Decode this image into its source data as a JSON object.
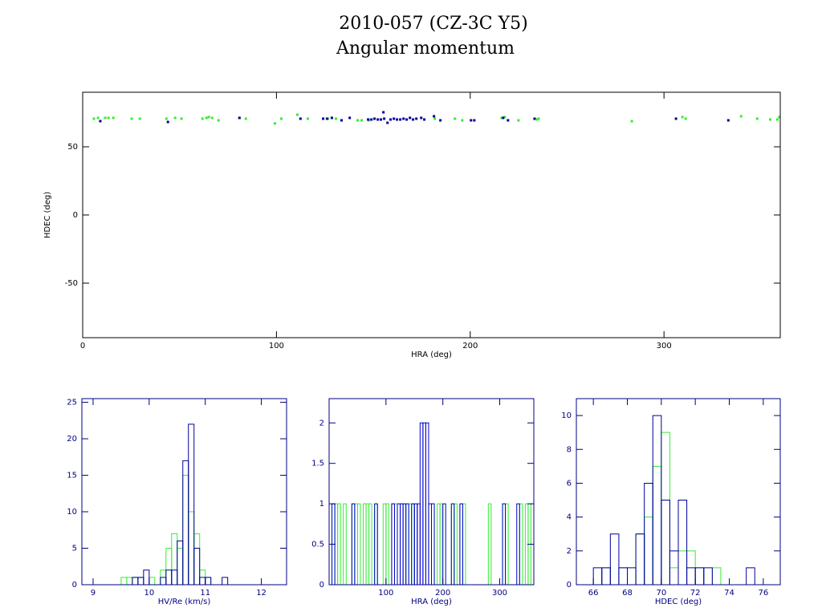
{
  "title": "2010-057 (CZ-3C Y5)",
  "subtitle": "Angular momentum",
  "chart_data": [
    {
      "type": "scatter",
      "xlabel": "HRA (deg)",
      "ylabel": "HDEC (deg)",
      "axis_color": "#000000",
      "xlim": [
        0,
        360
      ],
      "ylim": [
        -90,
        90
      ],
      "xticks": [
        0,
        100,
        200,
        300
      ],
      "yticks": [
        -50,
        0,
        50
      ],
      "series": [
        {
          "color": "#33ee33",
          "x": [
            5.8,
            7.9,
            11.6,
            13.3,
            15.8,
            25.3,
            29.5,
            43.2,
            47.7,
            51.0,
            61.8,
            63.9,
            65.1,
            66.8,
            70.1,
            80.9,
            84.2,
            99.2,
            102.5,
            110.8,
            116.2,
            126.6,
            130.7,
            141.9,
            144.0,
            147.7,
            181.7,
            192.1,
            195.9,
            216.2,
            217.8,
            224.9,
            234.4,
            235.3,
            283.4,
            309.5,
            311.2,
            339.8,
            348.1,
            354.8,
            358.5,
            359.5
          ],
          "values": [
            70.6,
            71.2,
            71.2,
            71.2,
            71.2,
            70.6,
            70.6,
            70.6,
            71.2,
            70.6,
            70.6,
            71.2,
            71.8,
            71.2,
            69.4,
            71.2,
            70.6,
            67.1,
            70.6,
            73.5,
            70.6,
            70.6,
            70.6,
            69.4,
            69.4,
            69.4,
            70.6,
            70.6,
            69.4,
            71.2,
            71.8,
            69.4,
            70.0,
            70.6,
            68.8,
            71.8,
            70.6,
            72.4,
            70.6,
            70.0,
            70.0,
            71.8
          ]
        },
        {
          "color": "#000099",
          "x": [
            9.1,
            44.0,
            80.9,
            112.4,
            124.1,
            126.1,
            128.6,
            133.6,
            137.8,
            147.3,
            149.0,
            150.6,
            152.3,
            153.9,
            155.2,
            155.6,
            157.3,
            158.9,
            160.6,
            162.2,
            163.9,
            165.6,
            167.2,
            168.9,
            170.5,
            172.2,
            174.7,
            176.3,
            181.3,
            184.6,
            200.4,
            202.1,
            217.0,
            219.5,
            233.2,
            306.2,
            333.2
          ],
          "values": [
            68.8,
            68.2,
            71.2,
            70.6,
            70.6,
            70.6,
            71.2,
            69.4,
            71.2,
            70.0,
            70.0,
            70.6,
            70.0,
            70.0,
            75.3,
            70.6,
            67.6,
            70.0,
            70.6,
            70.0,
            70.0,
            70.6,
            70.0,
            71.2,
            70.0,
            70.6,
            71.2,
            70.0,
            72.4,
            69.4,
            69.4,
            69.4,
            71.2,
            69.4,
            70.6,
            70.6,
            69.4
          ]
        }
      ]
    },
    {
      "type": "histogram",
      "xlabel": "HV/Re (km/s)",
      "axis_color": "#000080",
      "xlim": [
        8.8,
        12.45
      ],
      "ylim": [
        0,
        25.5
      ],
      "xticks": [
        9,
        10,
        11,
        12
      ],
      "yticks": [
        0,
        5,
        10,
        15,
        20,
        25
      ],
      "bins": [
        9.5,
        9.6,
        9.7,
        9.8,
        9.9,
        10.0,
        10.1,
        10.2,
        10.3,
        10.4,
        10.5,
        10.6,
        10.7,
        10.8,
        10.9,
        11.0,
        11.1,
        11.2,
        11.3,
        11.4,
        11.5,
        11.6
      ],
      "series": [
        {
          "color": "#33ee33",
          "values": [
            1,
            1,
            1,
            1,
            0,
            1,
            0,
            2,
            5,
            7,
            5,
            15,
            10,
            7,
            2,
            1,
            0,
            0,
            0,
            0,
            0
          ]
        },
        {
          "color": "#000099",
          "values": [
            0,
            0,
            1,
            1,
            2,
            0,
            0,
            1,
            2,
            2,
            6,
            17,
            22,
            5,
            1,
            1,
            0,
            0,
            1,
            0,
            0
          ]
        }
      ]
    },
    {
      "type": "histogram",
      "xlabel": "HRA (deg)",
      "axis_color": "#000080",
      "xlim": [
        0,
        360
      ],
      "ylim": [
        0,
        2.3
      ],
      "xticks": [
        100,
        200,
        300
      ],
      "yticks": [
        0,
        0.5,
        1,
        1.5,
        2
      ],
      "bins": [
        0,
        5,
        10,
        15,
        20,
        25,
        30,
        35,
        40,
        45,
        50,
        55,
        60,
        65,
        70,
        75,
        80,
        85,
        90,
        95,
        100,
        105,
        110,
        115,
        120,
        125,
        130,
        135,
        140,
        145,
        150,
        155,
        160,
        165,
        170,
        175,
        180,
        185,
        190,
        195,
        200,
        205,
        210,
        215,
        220,
        225,
        230,
        235,
        240,
        245,
        250,
        255,
        260,
        265,
        270,
        275,
        280,
        285,
        290,
        295,
        300,
        305,
        310,
        315,
        320,
        325,
        330,
        335,
        340,
        345,
        350,
        355,
        360
      ],
      "series": [
        {
          "color": "#33ee33",
          "values": [
            0,
            1,
            1,
            1,
            0,
            1,
            0,
            0,
            1,
            1,
            1,
            0,
            1,
            1,
            1,
            0,
            1,
            0,
            0,
            1,
            1,
            0,
            1,
            1,
            0,
            1,
            1,
            0,
            1,
            1,
            0,
            0,
            0,
            0,
            0,
            0,
            1,
            0,
            1,
            1,
            0,
            0,
            0,
            1,
            1,
            0,
            1,
            1,
            0,
            0,
            0,
            0,
            0,
            0,
            0,
            0,
            1,
            0,
            0,
            0,
            0,
            1,
            1,
            0,
            0,
            0,
            0,
            1,
            0,
            1,
            1,
            1
          ]
        },
        {
          "color": "#0000cc",
          "values": [
            0,
            1,
            0,
            0,
            0,
            0,
            0,
            0,
            1,
            0,
            0,
            0,
            0,
            0,
            0,
            0,
            1,
            0,
            0,
            0,
            0,
            0,
            1,
            0,
            1,
            1,
            1,
            1,
            0,
            1,
            1,
            1,
            2,
            2,
            2,
            1,
            1,
            0,
            0,
            0,
            1,
            0,
            0,
            1,
            0,
            0,
            1,
            0,
            0,
            0,
            0,
            0,
            0,
            0,
            0,
            0,
            0,
            0,
            0,
            0,
            0,
            1,
            0,
            0,
            0,
            0,
            1,
            0,
            0,
            0,
            0,
            0
          ]
        }
      ]
    },
    {
      "type": "histogram",
      "xlabel": "HDEC (deg)",
      "axis_color": "#000080",
      "xlim": [
        65,
        77
      ],
      "ylim": [
        0,
        11
      ],
      "xticks": [
        66,
        68,
        70,
        72,
        74,
        76
      ],
      "yticks": [
        0,
        2,
        4,
        6,
        8,
        10
      ],
      "bins": [
        66,
        66.5,
        67,
        67.5,
        68,
        68.5,
        69,
        69.5,
        70,
        70.5,
        71,
        71.5,
        72,
        72.5,
        73,
        73.5,
        74,
        74.5,
        75,
        75.5
      ],
      "series": [
        {
          "color": "#33ee33",
          "values": [
            0,
            1,
            0,
            1,
            0,
            3,
            4,
            7,
            9,
            1,
            2,
            2,
            1,
            0,
            1,
            0,
            0,
            0,
            0
          ]
        },
        {
          "color": "#000099",
          "values": [
            1,
            1,
            3,
            1,
            1,
            3,
            6,
            10,
            5,
            2,
            5,
            1,
            1,
            1,
            0,
            0,
            0,
            0,
            1
          ]
        }
      ]
    }
  ]
}
